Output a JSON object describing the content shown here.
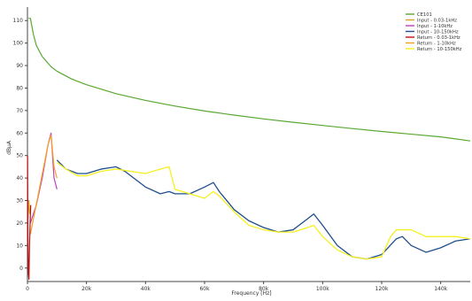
{
  "chart_data": {
    "type": "line",
    "title": "",
    "xlabel": "Frequency [Hz]",
    "ylabel": "dBµA",
    "xlim": [
      0,
      150000
    ],
    "ylim": [
      -6,
      116
    ],
    "grid": false,
    "legend_position": "top-right",
    "x_ticks": [
      {
        "value": 0,
        "label": "0"
      },
      {
        "value": 20000,
        "label": "20k"
      },
      {
        "value": 40000,
        "label": "40k"
      },
      {
        "value": 60000,
        "label": "60k"
      },
      {
        "value": 80000,
        "label": "80k"
      },
      {
        "value": 100000,
        "label": "100k"
      },
      {
        "value": 120000,
        "label": "120k"
      },
      {
        "value": 140000,
        "label": "140k"
      }
    ],
    "y_ticks": [
      {
        "value": 0,
        "label": "0"
      },
      {
        "value": 10,
        "label": "10"
      },
      {
        "value": 20,
        "label": "20"
      },
      {
        "value": 30,
        "label": "30"
      },
      {
        "value": 40,
        "label": "40"
      },
      {
        "value": 50,
        "label": "50"
      },
      {
        "value": 60,
        "label": "60"
      },
      {
        "value": 70,
        "label": "70"
      },
      {
        "value": 80,
        "label": "80"
      },
      {
        "value": 90,
        "label": "90"
      },
      {
        "value": 100,
        "label": "100"
      },
      {
        "value": 110,
        "label": "110"
      }
    ],
    "series": [
      {
        "name": "CE101",
        "color": "#5aa832",
        "width": 1.2,
        "x": [
          400,
          1000,
          2000,
          3000,
          5000,
          8000,
          10000,
          15000,
          20000,
          30000,
          40000,
          50000,
          60000,
          70000,
          80000,
          90000,
          100000,
          110000,
          120000,
          130000,
          140000,
          150000
        ],
        "y": [
          111,
          111,
          104,
          99,
          94,
          89.5,
          87.5,
          84,
          81.5,
          77.5,
          74.5,
          72,
          69.8,
          68,
          66.3,
          64.8,
          63.4,
          62,
          60.7,
          59.5,
          58.3,
          56.5
        ]
      },
      {
        "name": "Input - 0.03-1kHz",
        "color": "#e0a020",
        "width": 1.2,
        "x": [
          200,
          500,
          800
        ],
        "y": [
          22,
          30,
          24
        ]
      },
      {
        "name": "Input - 1-10kHz",
        "color": "#c040c0",
        "width": 1.2,
        "x": [
          1000,
          3000,
          5000,
          7000,
          8000,
          9000,
          10000
        ],
        "y": [
          20,
          28,
          40,
          55,
          60,
          40,
          35
        ]
      },
      {
        "name": "Input - 10-150kHz",
        "color": "#1f4e8c",
        "width": 1.3,
        "x": [
          10000,
          13000,
          17000,
          20000,
          25000,
          30000,
          33000,
          36000,
          40000,
          45000,
          48000,
          50000,
          55000,
          60000,
          63000,
          65000,
          70000,
          75000,
          80000,
          85000,
          90000,
          95000,
          97000,
          100000,
          105000,
          110000,
          115000,
          120000,
          125000,
          127000,
          130000,
          135000,
          140000,
          145000,
          150000
        ],
        "y": [
          48,
          44,
          42,
          42,
          44,
          45,
          43,
          40,
          36,
          33,
          34,
          33,
          33,
          36,
          38,
          34,
          26,
          21,
          18,
          16,
          17,
          22,
          24,
          19,
          10,
          5,
          4,
          6,
          13,
          14,
          10,
          7,
          9,
          12,
          13
        ]
      },
      {
        "name": "Return - 0.03-1kHz",
        "color": "#c01010",
        "width": 1.2,
        "x": [
          50,
          150,
          300,
          500,
          700,
          900,
          1100
        ],
        "y": [
          50,
          15,
          -2,
          -5,
          10,
          20,
          28
        ]
      },
      {
        "name": "Return - 1-10kHz",
        "color": "#f5a020",
        "width": 1.2,
        "x": [
          1000,
          2500,
          4000,
          5500,
          7000,
          8000,
          9000,
          10000
        ],
        "y": [
          15,
          25,
          35,
          45,
          55,
          59,
          45,
          40
        ]
      },
      {
        "name": "Return - 10-150kHz",
        "color": "#f5f020",
        "width": 1.3,
        "x": [
          10000,
          13000,
          17000,
          20000,
          25000,
          30000,
          35000,
          40000,
          45000,
          48000,
          50000,
          55000,
          60000,
          63000,
          65000,
          70000,
          75000,
          80000,
          85000,
          90000,
          95000,
          97000,
          100000,
          105000,
          110000,
          115000,
          120000,
          123000,
          125000,
          130000,
          135000,
          140000,
          145000,
          150000
        ],
        "y": [
          47,
          44,
          41,
          41,
          43,
          44,
          43,
          42,
          44,
          45,
          35,
          33,
          31,
          34,
          32,
          25,
          19,
          17,
          16,
          16,
          18,
          19,
          14,
          8,
          5,
          4,
          5,
          14,
          17,
          17,
          14,
          14,
          14,
          13
        ]
      }
    ]
  }
}
